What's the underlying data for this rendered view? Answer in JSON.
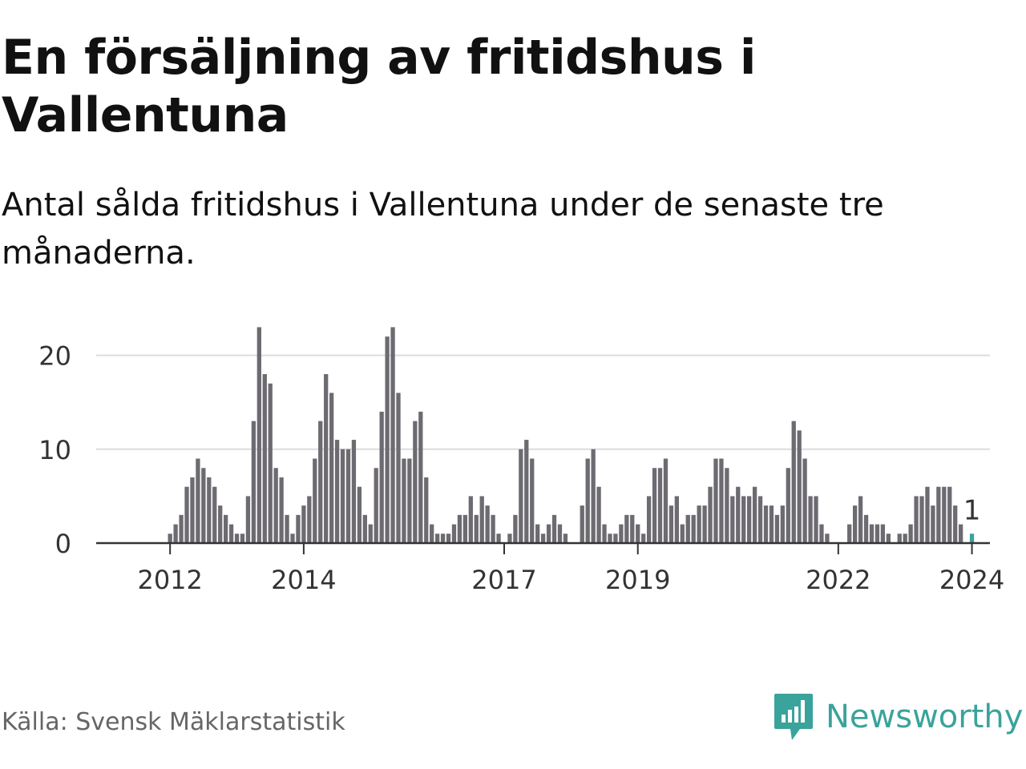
{
  "title": "En försäljning av fritidshus i Vallentuna",
  "subtitle": "Antal sålda fritidshus i Vallentuna under de senaste tre månaderna.",
  "source": "Källa: Svensk Mäklarstatistik",
  "brand": {
    "name": "Newsworthy",
    "color": "#3aa39b",
    "icon": "newsworthy-logo-icon"
  },
  "colors": {
    "bar": "#6d6b71",
    "highlight": "#3aa39b",
    "grid": "#dcdcdc",
    "axis": "#333333",
    "text": "#333333"
  },
  "chart_data": {
    "type": "bar",
    "title": "",
    "xlabel": "",
    "ylabel": "",
    "ylim": [
      0,
      23
    ],
    "yticks": [
      0,
      10,
      20
    ],
    "grid": true,
    "x_tick_labels": [
      "2012",
      "2014",
      "2017",
      "2019",
      "2022",
      "2024"
    ],
    "x_tick_positions": [
      "2012-01",
      "2014-01",
      "2017-01",
      "2019-01",
      "2022-01",
      "2024-01"
    ],
    "start_month": "2011-04",
    "series": [
      {
        "values": [
          0,
          0,
          0,
          0,
          0,
          0,
          0,
          0,
          0,
          1,
          2,
          3,
          6,
          7,
          9,
          8,
          7,
          6,
          4,
          3,
          2,
          1,
          1,
          5,
          13,
          23,
          18,
          17,
          8,
          7,
          3,
          1,
          3,
          4,
          5,
          9,
          13,
          18,
          16,
          11,
          10,
          10,
          11,
          6,
          3,
          2,
          8,
          14,
          22,
          23,
          16,
          9,
          9,
          13,
          14,
          7,
          2,
          1,
          1,
          1,
          2,
          3,
          3,
          5,
          3,
          5,
          4,
          3,
          1,
          0,
          1,
          3,
          10,
          11,
          9,
          2,
          1,
          2,
          3,
          2,
          1,
          0,
          0,
          4,
          9,
          10,
          6,
          2,
          1,
          1,
          2,
          3,
          3,
          2,
          1,
          5,
          8,
          8,
          9,
          4,
          5,
          2,
          3,
          3,
          4,
          4,
          6,
          9,
          9,
          8,
          5,
          6,
          5,
          5,
          6,
          5,
          4,
          4,
          3,
          4,
          8,
          13,
          12,
          9,
          5,
          5,
          2,
          1,
          0,
          0,
          0,
          2,
          4,
          5,
          3,
          2,
          2,
          2,
          1,
          0,
          1,
          1,
          2,
          5,
          5,
          6,
          4,
          6,
          6,
          6,
          4,
          2,
          0,
          1
        ]
      }
    ],
    "highlight_last": true,
    "annotations": [
      {
        "text": "1",
        "target": "last"
      }
    ]
  }
}
